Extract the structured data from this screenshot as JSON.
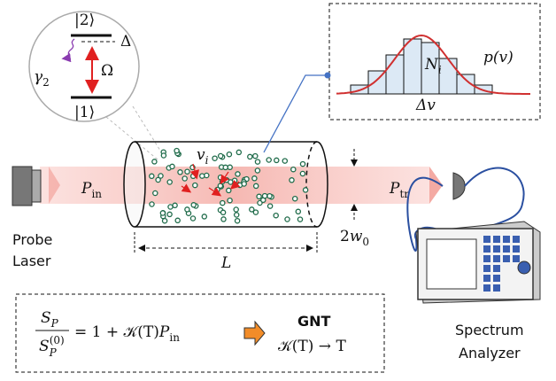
{
  "level_diagram": {
    "upper": "|2⟩",
    "lower": "|1⟩",
    "detuning": "Δ",
    "rabi": "Ω",
    "decay": {
      "base": "γ",
      "sub": "2"
    }
  },
  "distribution": {
    "function": "p(v)",
    "bin_count": {
      "base": "N",
      "sub": "i"
    },
    "bin_width": "Δv"
  },
  "cell": {
    "velocity": {
      "base": "v",
      "sub": "i"
    },
    "length": "L",
    "waist": {
      "coef": "2",
      "base": "w",
      "sub": "0"
    }
  },
  "beams": {
    "input": {
      "base": "P",
      "sub": "in"
    },
    "output": {
      "base": "P",
      "sub": "tr"
    }
  },
  "probe_label": [
    "Probe",
    "Laser"
  ],
  "analyzer_label": [
    "Spectrum",
    "Analyzer"
  ],
  "formula": {
    "num_base": "S",
    "num_sub": "P",
    "den_base": "S",
    "den_sub": "P",
    "den_sup": "(0)",
    "rhs": "= 1 + 𝒦(T)",
    "rhs_base": "P",
    "rhs_sub": "in"
  },
  "result": {
    "title": "GNT",
    "relation": "𝒦(T) → T"
  }
}
